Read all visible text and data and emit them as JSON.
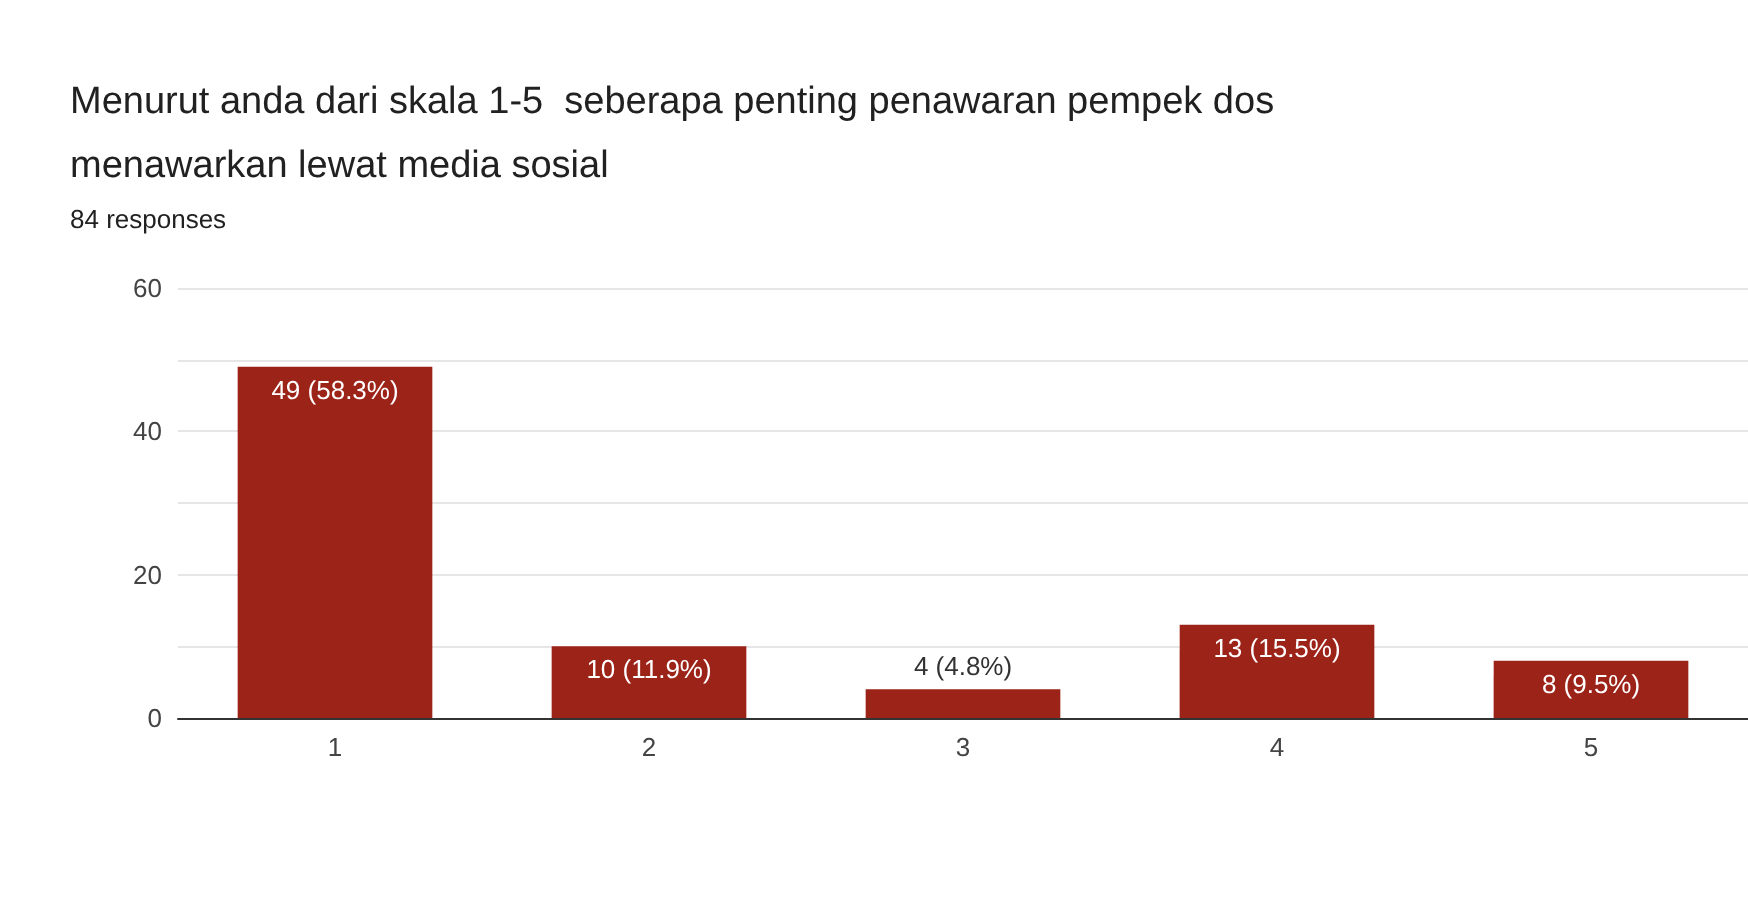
{
  "chart_data": {
    "type": "bar",
    "title": "Menurut anda dari skala 1-5  seberapa penting penawaran pempek dos\nmenawarkan lewat media sosial",
    "subtitle": "84 responses",
    "categories": [
      "1",
      "2",
      "3",
      "4",
      "5"
    ],
    "values": [
      49,
      10,
      4,
      13,
      8
    ],
    "value_labels": [
      "49 (58.3%)",
      "10 (11.9%)",
      "4 (4.8%)",
      "13 (15.5%)",
      "8 (9.5%)"
    ],
    "color": "#9c2318",
    "ylim": [
      0,
      60
    ],
    "yticks": [
      0,
      {
        "value": 10,
        "label": null
      },
      20,
      {
        "value": 30,
        "label": null
      },
      40,
      {
        "value": 50,
        "label": null
      },
      60
    ],
    "grid": "y"
  }
}
